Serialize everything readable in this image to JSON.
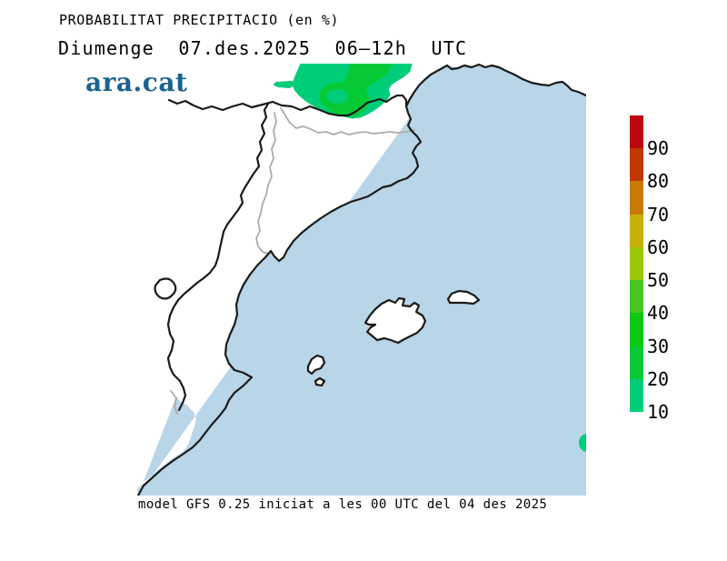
{
  "header": {
    "title": "PROBABILITAT PRECIPITACIO (en %)",
    "subtitle": "Diumenge  07.des.2025  06–12h  UTC",
    "logo": "ara.cat",
    "logo_color": "#1A628F"
  },
  "footer": {
    "caption": "model GFS 0.25 iniciat a les 00 UTC del 04 des 2025"
  },
  "legend": {
    "unit": "%",
    "labels_top_to_bottom": [
      "90",
      "80",
      "70",
      "60",
      "50",
      "40",
      "30",
      "20",
      "10"
    ],
    "swatches_top_to_bottom": [
      {
        "range": "90-100",
        "color": "#BC0711"
      },
      {
        "range": "80-90",
        "color": "#C13708"
      },
      {
        "range": "70-80",
        "color": "#C67C04"
      },
      {
        "range": "60-70",
        "color": "#C7B100"
      },
      {
        "range": "50-60",
        "color": "#9BC702"
      },
      {
        "range": "40-50",
        "color": "#46C523"
      },
      {
        "range": "30-40",
        "color": "#0BC915"
      },
      {
        "range": "20-30",
        "color": "#06CA35"
      },
      {
        "range": "10-20",
        "color": "#00CD78"
      }
    ]
  },
  "map": {
    "sea_color": "#B9D5E8",
    "land_color": "#FFFFFF",
    "coast_color": "#1A1A1A",
    "province_boundary_color": "#ABABAB",
    "precip_level_low_color": "#00CD78",
    "precip_level_mid_color": "#06CA35",
    "precip_levels_shown": [
      "10-20",
      "20-30"
    ],
    "region": "Catalonia, eastern Iberia, southern France and Balearic Islands",
    "precip_areas": [
      {
        "area": "Pyrenees / southern France",
        "probability": "10-30"
      },
      {
        "area": "map east edge at Balearic latitude",
        "probability": "10-20"
      }
    ]
  }
}
